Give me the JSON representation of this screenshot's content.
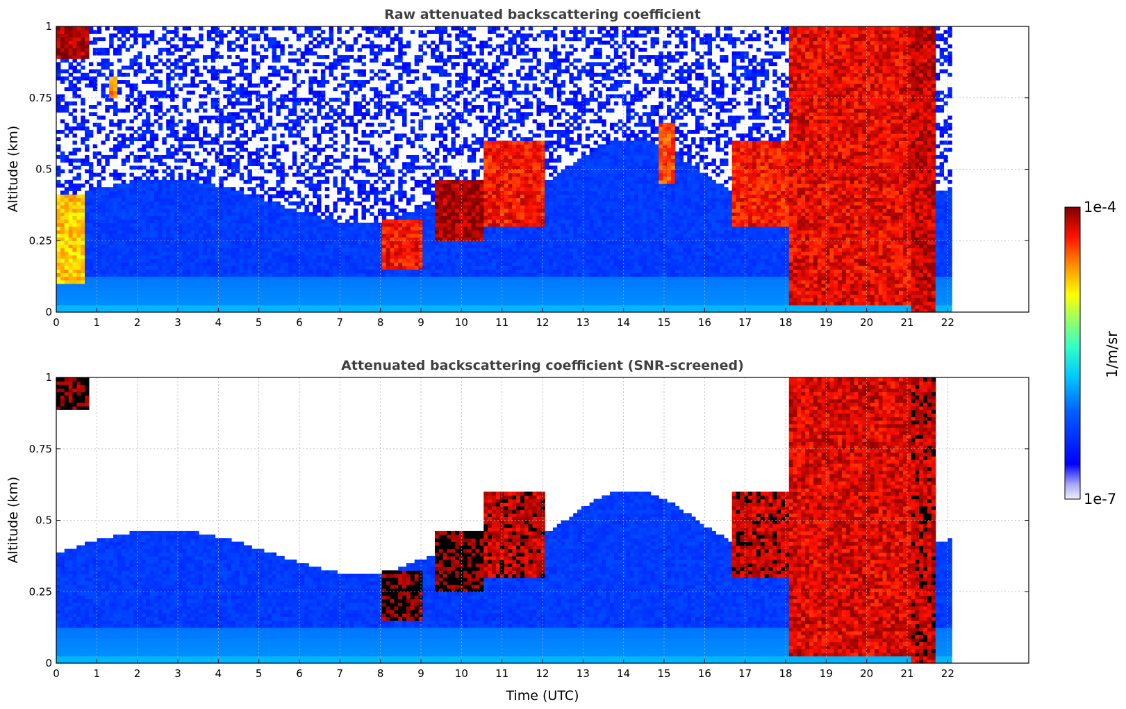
{
  "chart_data": [
    {
      "type": "heatmap",
      "title": "Raw attenuated backscattering coefficient",
      "xlabel": "",
      "ylabel": "Altitude (km)",
      "xlim": [
        0,
        24
      ],
      "ylim": [
        0,
        1
      ],
      "xticks": [
        "0",
        "1",
        "2",
        "3",
        "4",
        "5",
        "6",
        "7",
        "8",
        "9",
        "10",
        "11",
        "12",
        "13",
        "14",
        "15",
        "16",
        "17",
        "18",
        "19",
        "20",
        "21",
        "22"
      ],
      "yticks": [
        "0",
        "0.25",
        "0.5",
        "0.75",
        "1"
      ],
      "data_extent_hours": 22.1,
      "grid": true,
      "colormap": "jet",
      "features": [
        {
          "t": [
            0.0,
            0.8
          ],
          "alt": [
            0.88,
            1.0
          ],
          "level": 0.97
        },
        {
          "t": [
            0.0,
            0.7
          ],
          "alt": [
            0.1,
            0.4
          ],
          "level": 0.75
        },
        {
          "t": [
            1.3,
            1.5
          ],
          "alt": [
            0.75,
            0.82
          ],
          "level": 0.8
        },
        {
          "t": [
            8.0,
            9.0
          ],
          "alt": [
            0.15,
            0.32
          ],
          "level": 0.9
        },
        {
          "t": [
            9.3,
            10.5
          ],
          "alt": [
            0.25,
            0.45
          ],
          "level": 0.97
        },
        {
          "t": [
            10.5,
            12.0
          ],
          "alt": [
            0.3,
            0.6
          ],
          "level": 0.9
        },
        {
          "t": [
            14.8,
            15.2
          ],
          "alt": [
            0.45,
            0.65
          ],
          "level": 0.85
        },
        {
          "t": [
            16.6,
            18.0
          ],
          "alt": [
            0.3,
            0.6
          ],
          "level": 0.9
        },
        {
          "t": [
            18.0,
            21.0
          ],
          "alt": [
            0.02,
            1.0
          ],
          "level": 0.92
        },
        {
          "t": [
            21.0,
            21.6
          ],
          "alt": [
            0.0,
            1.0
          ],
          "level": 0.95
        }
      ]
    },
    {
      "type": "heatmap",
      "title": "Attenuated backscattering coefficient (SNR-screened)",
      "xlabel": "Time (UTC)",
      "ylabel": "Altitude (km)",
      "xlim": [
        0,
        24
      ],
      "ylim": [
        0,
        1
      ],
      "xticks": [
        "0",
        "1",
        "2",
        "3",
        "4",
        "5",
        "6",
        "7",
        "8",
        "9",
        "10",
        "11",
        "12",
        "13",
        "14",
        "15",
        "16",
        "17",
        "18",
        "19",
        "20",
        "21",
        "22"
      ],
      "yticks": [
        "0",
        "0.25",
        "0.5",
        "0.75",
        "1"
      ],
      "data_extent_hours": 22.1,
      "grid": true,
      "colormap": "jet",
      "saturated_color": "#000000",
      "features": [
        {
          "t": [
            0.0,
            0.8
          ],
          "alt": [
            0.88,
            1.0
          ],
          "level": 1.0
        },
        {
          "t": [
            8.0,
            9.0
          ],
          "alt": [
            0.15,
            0.32
          ],
          "level": 1.0
        },
        {
          "t": [
            9.3,
            10.5
          ],
          "alt": [
            0.25,
            0.45
          ],
          "level": 1.0
        },
        {
          "t": [
            10.5,
            12.0
          ],
          "alt": [
            0.3,
            0.6
          ],
          "level": 0.95
        },
        {
          "t": [
            16.6,
            18.0
          ],
          "alt": [
            0.3,
            0.6
          ],
          "level": 0.95
        },
        {
          "t": [
            18.0,
            21.0
          ],
          "alt": [
            0.02,
            1.0
          ],
          "level": 0.93
        },
        {
          "t": [
            21.0,
            21.6
          ],
          "alt": [
            0.0,
            1.0
          ],
          "level": 0.95
        }
      ]
    }
  ],
  "colorbar": {
    "max_label": "1e-4",
    "min_label": "1e-7",
    "label": "1/m/sr",
    "scale": "log",
    "range": [
      1e-07,
      0.0001
    ]
  }
}
